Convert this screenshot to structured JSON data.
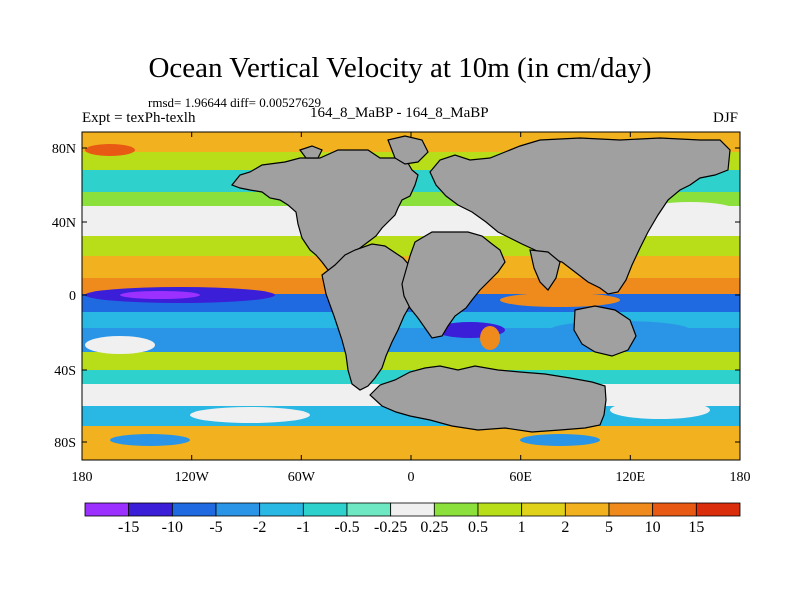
{
  "figure": {
    "title": "Ocean Vertical Velocity at 10m (in cm/day)",
    "stats": "rmsd= 1.96644 diff= 0.00527629",
    "experiment": "Expt = texPh-texlh",
    "case": "164_8_MaBP - 164_8_MaBP",
    "season": "DJF"
  },
  "axes": {
    "lat_labels": [
      "80N",
      "40N",
      "0",
      "40S",
      "80S"
    ],
    "lon_labels": [
      "180",
      "120W",
      "60W",
      "0",
      "60E",
      "120E",
      "180"
    ]
  },
  "colorbar": {
    "labels": [
      "-15",
      "-10",
      "-5",
      "-2",
      "-1",
      "-0.5",
      "-0.25",
      "0.25",
      "0.5",
      "1",
      "2",
      "5",
      "10",
      "15"
    ],
    "colors": [
      "#9b30ff",
      "#3a1ed8",
      "#1f6ae0",
      "#2a95e6",
      "#29b8e4",
      "#2fd1cc",
      "#6ee8c2",
      "#f0f0f0",
      "#8ce03c",
      "#b8de1a",
      "#e0d21b",
      "#f2b21f",
      "#ef8a1c",
      "#e85a14",
      "#d92d0c"
    ]
  },
  "legend": {
    "land_color": "#a0a0a0"
  }
}
